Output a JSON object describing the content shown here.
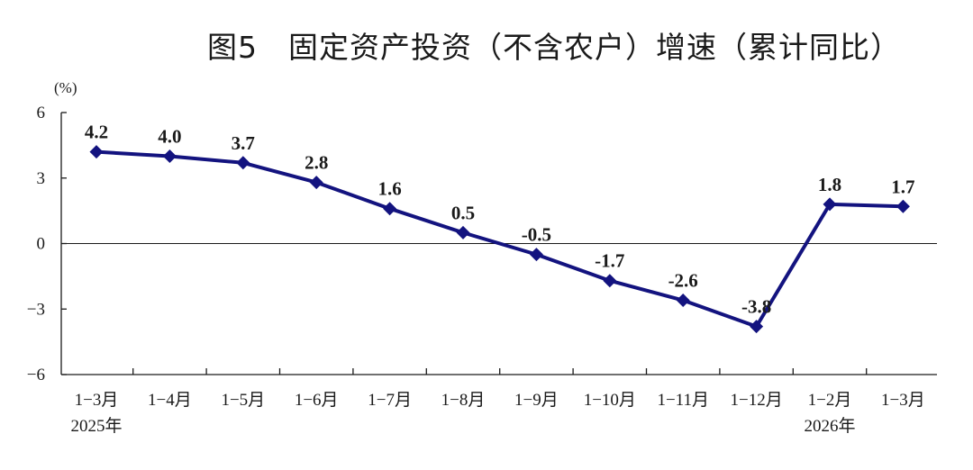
{
  "title": "图5　固定资产投资（不含农户）增速（累计同比）",
  "colors": {
    "line": "#13137f",
    "axis": "#1a1a1a",
    "text": "#1a1a1a"
  },
  "chart_data": {
    "type": "line",
    "title": "图5　固定资产投资（不含农户）增速（累计同比）",
    "ylabel": "(%)",
    "xlabel": "",
    "ylim": [
      -6,
      6
    ],
    "yticks": [
      6,
      3,
      0,
      -3,
      -6
    ],
    "ytick_labels": [
      "6",
      "3",
      "0",
      "−3",
      "−6"
    ],
    "grid": false,
    "categories": [
      "1−3月",
      "1−4月",
      "1−5月",
      "1−6月",
      "1−7月",
      "1−8月",
      "1−9月",
      "1−10月",
      "1−11月",
      "1−12月",
      "1−2月",
      "1−3月"
    ],
    "year_labels": [
      {
        "index": 0,
        "text": "2025年"
      },
      {
        "index": 10,
        "text": "2026年"
      }
    ],
    "series": [
      {
        "values": [
          4.2,
          4.0,
          3.7,
          2.8,
          1.6,
          0.5,
          -0.5,
          -1.7,
          -2.6,
          -3.8,
          1.8,
          1.7
        ],
        "labels": [
          "4.2",
          "4.0",
          "3.7",
          "2.8",
          "1.6",
          "0.5",
          "-0.5",
          "-1.7",
          "-2.6",
          "-3.8",
          "1.8",
          "1.7"
        ],
        "marker": "diamond"
      }
    ]
  }
}
